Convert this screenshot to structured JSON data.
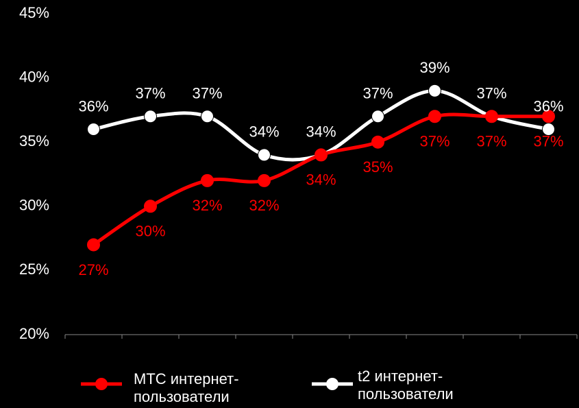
{
  "chart_data": {
    "type": "line",
    "categories": [
      null,
      null,
      null,
      null,
      null,
      null,
      null,
      null,
      null
    ],
    "series": [
      {
        "name": "МТС интернет-пользователи",
        "color": "#ff0000",
        "values": [
          27,
          30,
          32,
          32,
          34,
          35,
          37,
          37,
          37
        ],
        "value_labels": [
          "27%",
          "30%",
          "32%",
          "32%",
          "34%",
          "35%",
          "37%",
          "37%",
          "37%"
        ]
      },
      {
        "name": "t2 интернет-пользователи",
        "color": "#ffffff",
        "values": [
          36,
          37,
          37,
          34,
          34,
          37,
          39,
          37,
          36
        ],
        "value_labels": [
          "36%",
          "37%",
          "37%",
          "34%",
          "34%",
          "37%",
          "39%",
          "37%",
          "36%"
        ]
      }
    ],
    "ylim": [
      20,
      45
    ],
    "yticks": [
      {
        "value": 20,
        "label": "20%"
      },
      {
        "value": 25,
        "label": "25%"
      },
      {
        "value": 30,
        "label": "30%"
      },
      {
        "value": 35,
        "label": "35%"
      },
      {
        "value": 40,
        "label": "40%"
      },
      {
        "value": 45,
        "label": "45%"
      }
    ],
    "grid": false
  }
}
